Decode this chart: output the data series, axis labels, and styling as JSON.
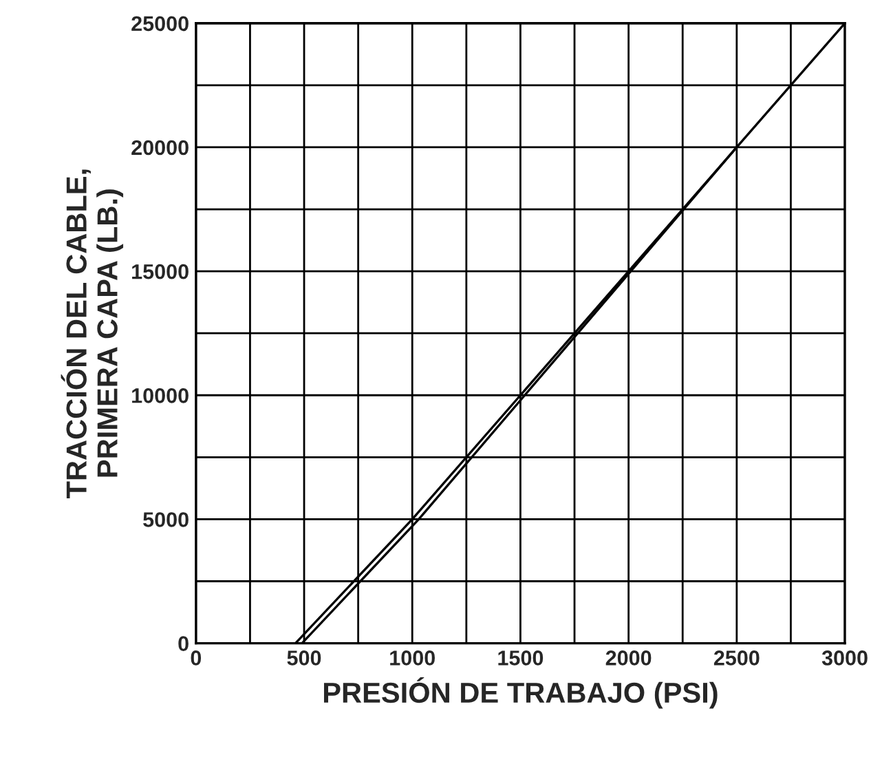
{
  "chart_data": {
    "type": "line",
    "xlabel": "PRESIÓN DE TRABAJO (PSI)",
    "ylabel": "TRACCIÓN DEL CABLE,\nPRIMERA CAPA (LB.)",
    "series": [
      {
        "color": "#000000",
        "x": [
          460,
          1000,
          1500,
          2000,
          2500,
          3000
        ],
        "values": [
          0,
          5000,
          10000,
          15000,
          20000,
          25000
        ]
      },
      {
        "color": "#000000",
        "x": [
          490,
          1030,
          1520,
          2010,
          2500
        ],
        "values": [
          0,
          5000,
          10000,
          15000,
          20000
        ]
      }
    ],
    "xlim": [
      0,
      3000
    ],
    "ylim": [
      0,
      25000
    ],
    "xticks": [
      0,
      {
        "value": 250,
        "label": null
      },
      500,
      {
        "value": 750,
        "label": null
      },
      1000,
      {
        "value": 1250,
        "label": null
      },
      1500,
      {
        "value": 1750,
        "label": null
      },
      2000,
      {
        "value": 2250,
        "label": null
      },
      2500,
      {
        "value": 2750,
        "label": null
      },
      3000
    ],
    "yticks": [
      0,
      {
        "value": 2500,
        "label": null
      },
      5000,
      {
        "value": 7500,
        "label": null
      },
      10000,
      {
        "value": 12500,
        "label": null
      },
      15000,
      {
        "value": 17500,
        "label": null
      },
      20000,
      {
        "value": 22500,
        "label": null
      },
      25000
    ],
    "grid": true,
    "line_style": "solid",
    "marker": "none"
  }
}
